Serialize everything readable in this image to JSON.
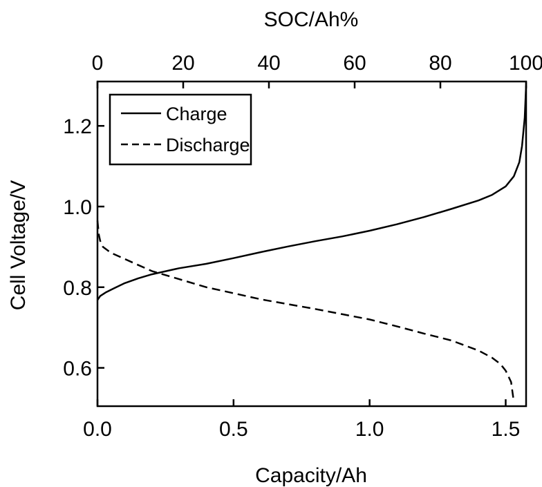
{
  "chart_data": {
    "type": "line",
    "xlabel": "Capacity/Ah",
    "x2label": "SOC/Ah%",
    "ylabel": "Cell Voltage/V",
    "xlim": [
      0,
      1.575
    ],
    "x2lim": [
      0,
      100
    ],
    "ylim": [
      0.505,
      1.31
    ],
    "xticks": [
      0.0,
      0.5,
      1.0,
      1.5
    ],
    "xtick_labels": [
      "0.0",
      "0.5",
      "1.0",
      "1.5"
    ],
    "x2ticks": [
      0,
      20,
      40,
      60,
      80,
      100
    ],
    "x2tick_labels": [
      "0",
      "20",
      "40",
      "60",
      "80",
      "100"
    ],
    "yticks": [
      0.6,
      0.8,
      1.0,
      1.2
    ],
    "ytick_labels": [
      "0.6",
      "0.8",
      "1.0",
      "1.2"
    ],
    "grid": false,
    "legend_position": "top-left",
    "series": [
      {
        "name": "Charge",
        "style": "solid",
        "x": [
          0.0,
          0.01,
          0.03,
          0.06,
          0.1,
          0.15,
          0.2,
          0.3,
          0.4,
          0.5,
          0.6,
          0.7,
          0.8,
          0.9,
          1.0,
          1.1,
          1.2,
          1.3,
          1.4,
          1.45,
          1.5,
          1.53,
          1.55,
          1.56,
          1.57,
          1.575
        ],
        "y": [
          0.768,
          0.778,
          0.787,
          0.797,
          0.81,
          0.822,
          0.832,
          0.847,
          0.858,
          0.872,
          0.887,
          0.901,
          0.914,
          0.926,
          0.94,
          0.956,
          0.974,
          0.994,
          1.015,
          1.029,
          1.05,
          1.075,
          1.11,
          1.15,
          1.22,
          1.3
        ]
      },
      {
        "name": "Discharge",
        "style": "dashed",
        "x": [
          0.0,
          0.005,
          0.01,
          0.02,
          0.05,
          0.1,
          0.15,
          0.2,
          0.3,
          0.4,
          0.5,
          0.6,
          0.7,
          0.8,
          0.9,
          1.0,
          1.1,
          1.2,
          1.3,
          1.4,
          1.45,
          1.48,
          1.5,
          1.52,
          1.53
        ],
        "y": [
          0.965,
          0.93,
          0.915,
          0.9,
          0.885,
          0.87,
          0.855,
          0.84,
          0.82,
          0.8,
          0.785,
          0.77,
          0.758,
          0.746,
          0.733,
          0.72,
          0.703,
          0.685,
          0.668,
          0.643,
          0.625,
          0.61,
          0.593,
          0.565,
          0.515
        ]
      }
    ]
  }
}
